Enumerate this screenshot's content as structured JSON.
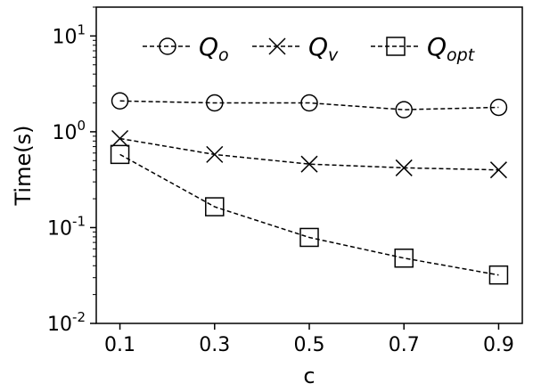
{
  "chart_data": {
    "type": "line",
    "title": "",
    "xlabel": "c",
    "ylabel": "Time(s)",
    "x": [
      0.1,
      0.3,
      0.5,
      0.7,
      0.9
    ],
    "x_tick_labels": [
      "0.1",
      "0.3",
      "0.5",
      "0.7",
      "0.9"
    ],
    "y_scale": "log",
    "ylim": [
      0.01,
      20
    ],
    "y_ticks": [
      {
        "base": "10",
        "exp": "-2",
        "value": 0.01
      },
      {
        "base": "10",
        "exp": "-1",
        "value": 0.1
      },
      {
        "base": "10",
        "exp": "0",
        "value": 1
      },
      {
        "base": "10",
        "exp": "1",
        "value": 10
      }
    ],
    "grid": false,
    "legend_position": "top",
    "series": [
      {
        "name_main": "Q",
        "name_sub": "o",
        "marker": "circle",
        "values": [
          2.1,
          2.0,
          2.0,
          1.7,
          1.8
        ]
      },
      {
        "name_main": "Q",
        "name_sub": "v",
        "marker": "x",
        "values": [
          0.85,
          0.58,
          0.46,
          0.42,
          0.4
        ]
      },
      {
        "name_main": "Q",
        "name_sub": "opt",
        "marker": "square",
        "values": [
          0.58,
          0.165,
          0.079,
          0.048,
          0.032
        ]
      }
    ],
    "line_color": "#000000"
  }
}
